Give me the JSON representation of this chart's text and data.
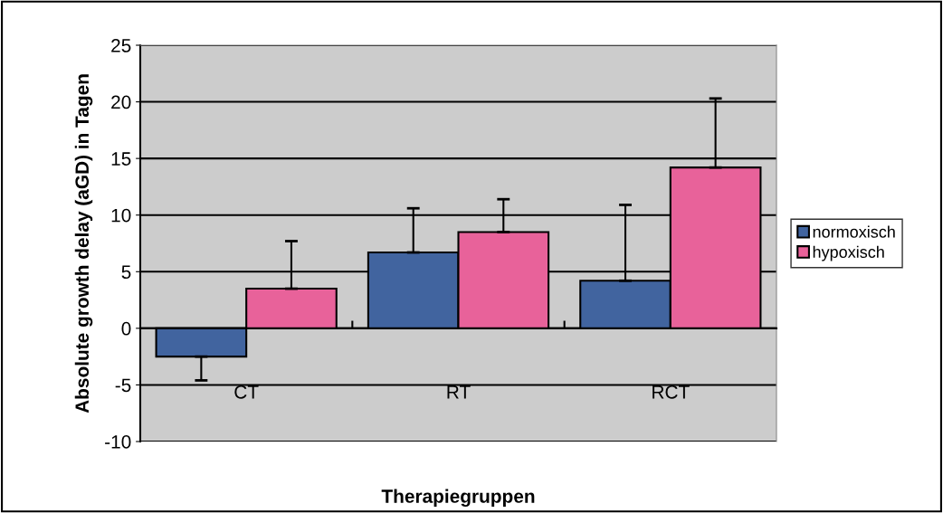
{
  "chart_data": {
    "type": "bar",
    "xlabel": "Therapiegruppen",
    "ylabel": "Absolute growth delay (aGD) in Tagen",
    "categories": [
      "CT",
      "RT",
      "RCT"
    ],
    "series": [
      {
        "name": "normoxisch",
        "color": "#41649f",
        "values": [
          -2.5,
          6.7,
          4.2
        ],
        "errors": [
          [
            -4.6,
            -2.5
          ],
          [
            6.7,
            10.6
          ],
          [
            4.2,
            10.9
          ]
        ]
      },
      {
        "name": "hypoxisch",
        "color": "#e8629a",
        "values": [
          3.5,
          8.5,
          14.2
        ],
        "errors": [
          [
            3.5,
            7.7
          ],
          [
            8.5,
            11.4
          ],
          [
            14.2,
            20.3
          ]
        ]
      }
    ],
    "ylim": [
      -10,
      25
    ],
    "yticks": [
      -10,
      -5,
      0,
      5,
      10,
      15,
      20,
      25
    ],
    "grid": "y",
    "legend": "right"
  }
}
